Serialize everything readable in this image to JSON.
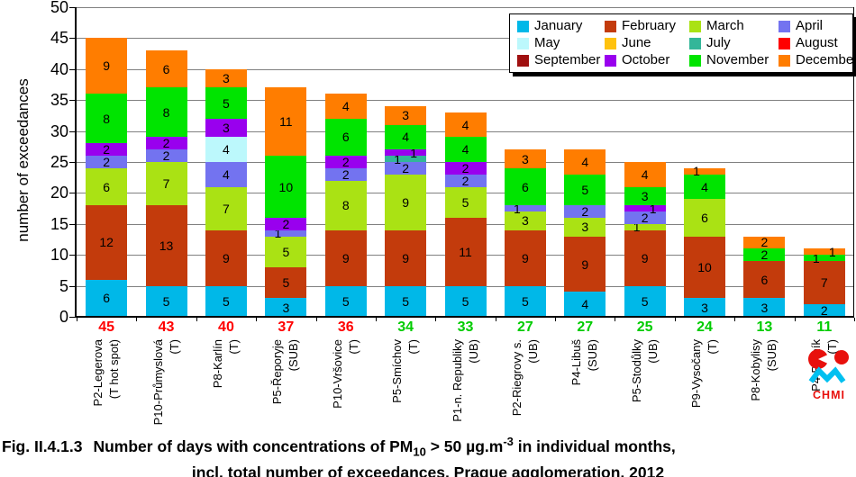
{
  "chart_data": {
    "type": "stacked-bar",
    "ylabel": "number of exceedances",
    "ylim": [
      0,
      50
    ],
    "ytick_step": 5,
    "grid": true,
    "legend_position": "top-right",
    "legend_rows": 3,
    "series": [
      {
        "name": "January",
        "color": "#00B8E8",
        "values": [
          6,
          5,
          5,
          3,
          5,
          5,
          5,
          5,
          4,
          5,
          3,
          3,
          2
        ]
      },
      {
        "name": "February",
        "color": "#C33B0C",
        "values": [
          12,
          13,
          9,
          5,
          9,
          9,
          11,
          9,
          9,
          9,
          10,
          6,
          7
        ]
      },
      {
        "name": "March",
        "color": "#AAE214",
        "values": [
          6,
          7,
          7,
          5,
          8,
          9,
          5,
          3,
          3,
          1,
          6,
          0,
          0
        ]
      },
      {
        "name": "April",
        "color": "#7373F0",
        "values": [
          2,
          2,
          4,
          1,
          2,
          2,
          2,
          1,
          2,
          2,
          0,
          0,
          0
        ]
      },
      {
        "name": "May",
        "color": "#BCF8FC",
        "values": [
          0,
          0,
          4,
          0,
          0,
          0,
          0,
          0,
          0,
          0,
          0,
          0,
          0
        ]
      },
      {
        "name": "June",
        "color": "#FFC20E",
        "values": [
          0,
          0,
          0,
          0,
          0,
          0,
          0,
          0,
          0,
          0,
          0,
          0,
          0
        ]
      },
      {
        "name": "July",
        "color": "#33B699",
        "values": [
          0,
          0,
          0,
          0,
          0,
          1,
          0,
          0,
          0,
          0,
          0,
          0,
          0
        ]
      },
      {
        "name": "August",
        "color": "#FF0000",
        "values": [
          0,
          0,
          0,
          0,
          0,
          0,
          0,
          0,
          0,
          0,
          0,
          0,
          0
        ]
      },
      {
        "name": "September",
        "color": "#A01010",
        "values": [
          0,
          0,
          0,
          0,
          0,
          0,
          0,
          0,
          0,
          0,
          0,
          0,
          0
        ]
      },
      {
        "name": "October",
        "color": "#9900EE",
        "values": [
          2,
          2,
          3,
          2,
          2,
          1,
          2,
          0,
          0,
          1,
          0,
          0,
          0
        ]
      },
      {
        "name": "November",
        "color": "#00E400",
        "values": [
          8,
          8,
          5,
          10,
          6,
          4,
          4,
          6,
          5,
          3,
          4,
          2,
          1
        ]
      },
      {
        "name": "December",
        "color": "#FF7D00",
        "values": [
          9,
          6,
          3,
          11,
          4,
          3,
          4,
          3,
          4,
          4,
          1,
          2,
          1
        ]
      }
    ],
    "stations": [
      {
        "name": "P2-Legerova",
        "type": "(T hot spot)",
        "total": 45,
        "total_color": "#FF0000"
      },
      {
        "name": "P10-Průmyslová",
        "type": "(T)",
        "total": 43,
        "total_color": "#FF0000"
      },
      {
        "name": "P8-Karlín",
        "type": "(T)",
        "total": 40,
        "total_color": "#FF0000"
      },
      {
        "name": "P5-Řeporyje",
        "type": "(SUB)",
        "total": 37,
        "total_color": "#FF0000"
      },
      {
        "name": "P10-Vršovice",
        "type": "(T)",
        "total": 36,
        "total_color": "#FF0000"
      },
      {
        "name": "P5-Smíchov",
        "type": "(T)",
        "total": 34,
        "total_color": "#00CC00"
      },
      {
        "name": "P1-n. Republiky",
        "type": "(UB)",
        "total": 33,
        "total_color": "#00CC00"
      },
      {
        "name": "P2-Riegrovy s.",
        "type": "(UB)",
        "total": 27,
        "total_color": "#00CC00"
      },
      {
        "name": "P4-Libuš",
        "type": "(SUB)",
        "total": 27,
        "total_color": "#00CC00"
      },
      {
        "name": "P5-Stodůlky",
        "type": "(UB)",
        "total": 25,
        "total_color": "#00CC00"
      },
      {
        "name": "P9-Vysočany",
        "type": "(T)",
        "total": 24,
        "total_color": "#00CC00"
      },
      {
        "name": "P8-Kobylisy",
        "type": "(SUB)",
        "total": 13,
        "total_color": "#00CC00"
      },
      {
        "name": "P4-Braník",
        "type": "(T)",
        "total": 11,
        "total_color": "#00CC00"
      }
    ]
  },
  "caption": {
    "fig": "Fig. II.4.1.3",
    "part1": "Number of days with concentrations of PM",
    "sub": "10",
    "part2": " > 50 µg.m",
    "sup": "-3",
    "part3": " in individual months,",
    "line2": "incl. total number of exceedances, Prague agglomeration, 2012"
  },
  "logo": {
    "text": "CHMI"
  }
}
